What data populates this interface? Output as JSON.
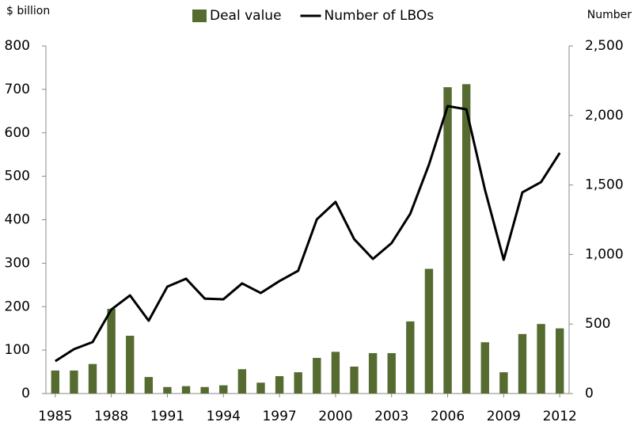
{
  "chart_data": {
    "type": "bar-line",
    "y_label": "$ billion",
    "y2_label": "Number",
    "categories": [
      "1985",
      null,
      null,
      "1988",
      null,
      null,
      "1991",
      null,
      null,
      "1994",
      null,
      null,
      "1997",
      null,
      null,
      "2000",
      null,
      null,
      "2003",
      null,
      null,
      "2006",
      null,
      null,
      "2009",
      null,
      null,
      "2012"
    ],
    "series": [
      {
        "name": "Deal value",
        "type": "bar",
        "color": "#556b2f",
        "axis": "y",
        "values": [
          53,
          53,
          68,
          195,
          133,
          38,
          15,
          17,
          15,
          19,
          56,
          25,
          40,
          49,
          82,
          96,
          62,
          93,
          93,
          166,
          287,
          705,
          712,
          118,
          49,
          137,
          160,
          150
        ]
      },
      {
        "name": "Number of LBOs",
        "type": "line",
        "color": "#000000",
        "axis": "y2",
        "values": [
          233,
          319,
          370,
          604,
          706,
          524,
          769,
          826,
          683,
          678,
          792,
          723,
          809,
          883,
          1253,
          1378,
          1110,
          968,
          1082,
          1293,
          1646,
          2067,
          2044,
          1464,
          962,
          1447,
          1521,
          1731
        ]
      }
    ],
    "ylim": [
      0,
      800
    ],
    "yticks": [
      0,
      100,
      200,
      300,
      400,
      500,
      600,
      700,
      800
    ],
    "y2lim": [
      0,
      2500
    ],
    "y2ticks": [
      0,
      500,
      {
        "value": 1000,
        "label": "1,000"
      },
      {
        "value": 1500,
        "label": "1,500"
      },
      {
        "value": 2000,
        "label": "2,000"
      },
      {
        "value": 2500,
        "label": "2,500"
      }
    ],
    "grid": false
  }
}
